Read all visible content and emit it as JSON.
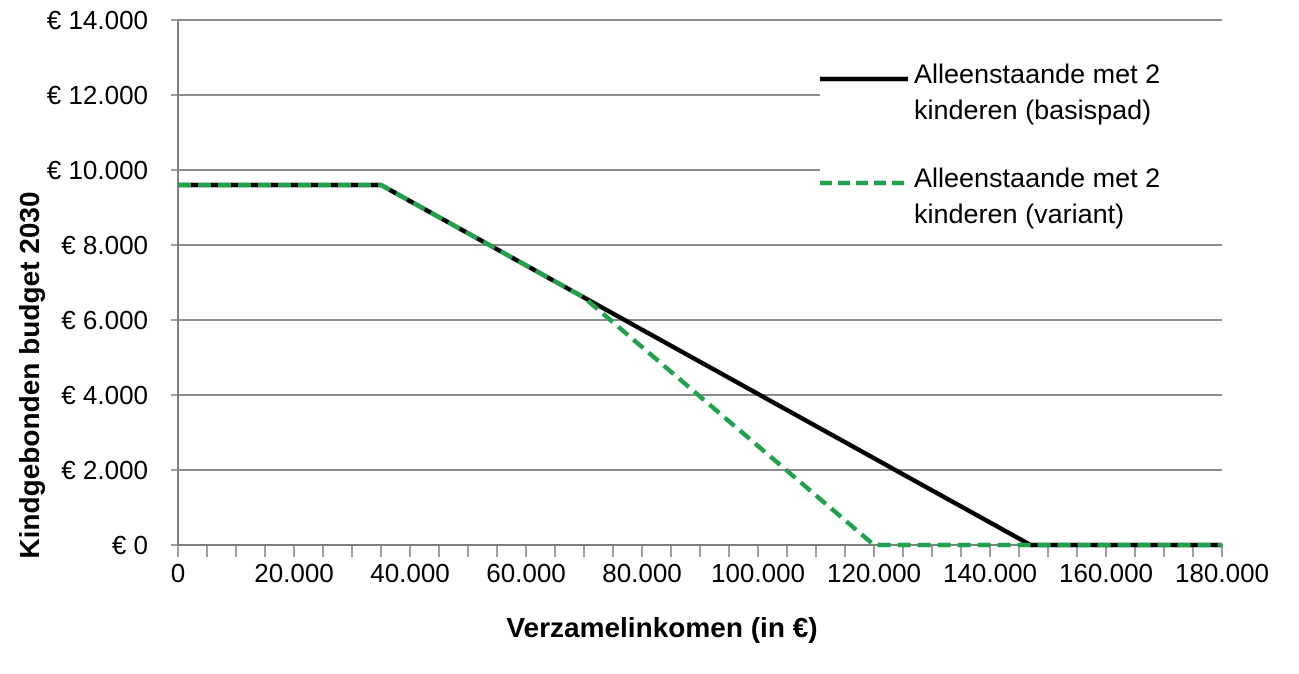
{
  "chart_data": {
    "type": "line",
    "xlabel": "Verzamelinkomen (in €)",
    "ylabel": "Kindgebonden budget 2030",
    "xlim": [
      0,
      180000
    ],
    "ylim": [
      0,
      14000
    ],
    "grid": "horizontal",
    "legend_position": "upper-right-inside",
    "x_minor_tick_step": 5000,
    "x_ticks": [
      {
        "v": 0,
        "label": "0"
      },
      {
        "v": 20000,
        "label": "20.000"
      },
      {
        "v": 40000,
        "label": "40.000"
      },
      {
        "v": 60000,
        "label": "60.000"
      },
      {
        "v": 80000,
        "label": "80.000"
      },
      {
        "v": 100000,
        "label": "100.000"
      },
      {
        "v": 120000,
        "label": "120.000"
      },
      {
        "v": 140000,
        "label": "140.000"
      },
      {
        "v": 160000,
        "label": "160.000"
      },
      {
        "v": 180000,
        "label": "180.000"
      }
    ],
    "y_ticks": [
      {
        "v": 0,
        "label": "€ 0"
      },
      {
        "v": 2000,
        "label": "€ 2.000"
      },
      {
        "v": 4000,
        "label": "€ 4.000"
      },
      {
        "v": 6000,
        "label": "€ 6.000"
      },
      {
        "v": 8000,
        "label": "€ 8.000"
      },
      {
        "v": 10000,
        "label": "€ 10.000"
      },
      {
        "v": 12000,
        "label": "€ 12.000"
      },
      {
        "v": 14000,
        "label": "€ 14.000"
      }
    ],
    "series": [
      {
        "name": "Alleenstaande met 2 kinderen (basispad)",
        "color": "#000000",
        "dash": "solid",
        "points": [
          [
            0,
            9600
          ],
          [
            35000,
            9600
          ],
          [
            147000,
            0
          ],
          [
            180000,
            0
          ]
        ]
      },
      {
        "name": "Alleenstaande met 2 kinderen (variant)",
        "color": "#1FA24A",
        "dash": "dashed",
        "points": [
          [
            0,
            9600
          ],
          [
            35000,
            9600
          ],
          [
            70000,
            6600
          ],
          [
            120000,
            0
          ],
          [
            180000,
            0
          ]
        ]
      }
    ]
  },
  "legend": {
    "items": [
      {
        "line1": "Alleenstaande met 2",
        "line2": "kinderen (basispad)",
        "color": "#000000",
        "dash": "solid"
      },
      {
        "line1": "Alleenstaande met 2",
        "line2": "kinderen (variant)",
        "color": "#1FA24A",
        "dash": "dashed"
      }
    ]
  },
  "colors": {
    "grid": "#8C8C8C",
    "axis": "#7F7F7F",
    "text": "#000000",
    "basispad_black": "#000000",
    "variant_green": "#1FA24A"
  }
}
